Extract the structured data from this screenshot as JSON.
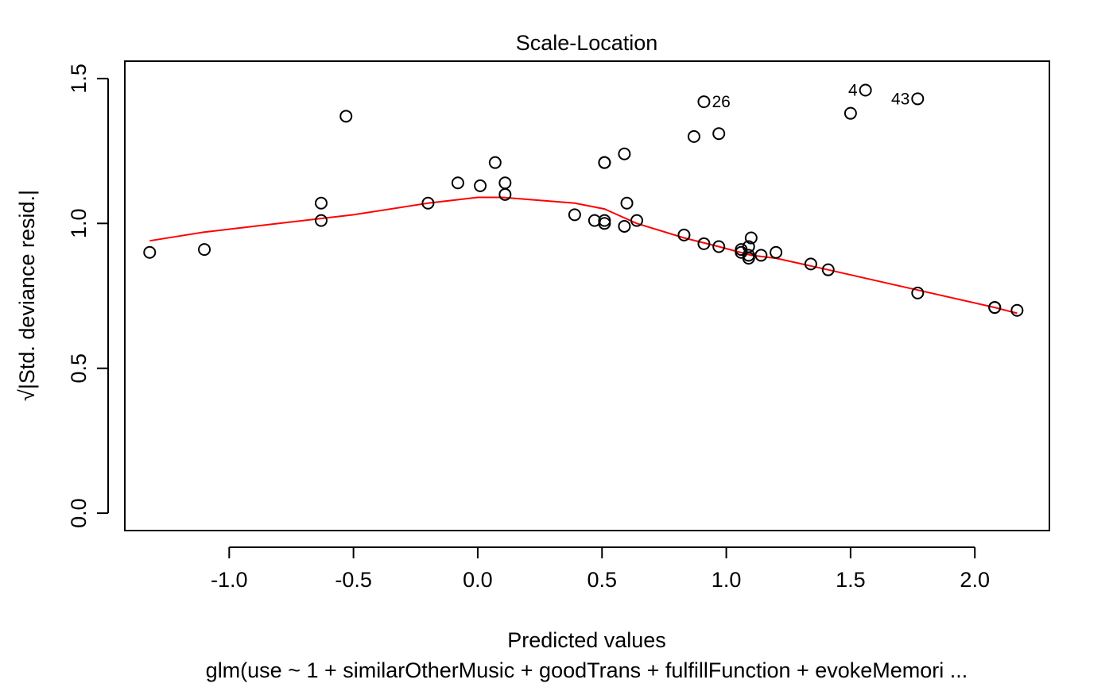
{
  "chart_data": {
    "type": "scatter",
    "title": "Scale-Location",
    "xlabel": "Predicted values",
    "ylabel": "√|Std. deviance resid.|",
    "subtitle": "glm(use ~ 1 + similarOtherMusic + goodTrans + fulfillFunction + evokeMemori ...",
    "xlim": [
      -1.42,
      2.3
    ],
    "ylim": [
      -0.06,
      1.56
    ],
    "x_ticks": [
      {
        "value": -1.0,
        "label": "-1.0"
      },
      {
        "value": -0.5,
        "label": "-0.5"
      },
      {
        "value": 0.0,
        "label": "0.0"
      },
      {
        "value": 0.5,
        "label": "0.5"
      },
      {
        "value": 1.0,
        "label": "1.0"
      },
      {
        "value": 1.5,
        "label": "1.5"
      },
      {
        "value": 2.0,
        "label": "2.0"
      }
    ],
    "y_ticks": [
      {
        "value": 0.0,
        "label": "0.0"
      },
      {
        "value": 0.5,
        "label": "0.5"
      },
      {
        "value": 1.0,
        "label": "1.0"
      },
      {
        "value": 1.5,
        "label": "1.5"
      }
    ],
    "grid": false,
    "point_color": "#000000",
    "smooth_color": "#ff0000",
    "points": [
      {
        "x": -1.32,
        "y": 0.9
      },
      {
        "x": -1.1,
        "y": 0.91
      },
      {
        "x": -0.63,
        "y": 1.07
      },
      {
        "x": -0.63,
        "y": 1.01
      },
      {
        "x": -0.53,
        "y": 1.37
      },
      {
        "x": -0.2,
        "y": 1.07
      },
      {
        "x": -0.08,
        "y": 1.14
      },
      {
        "x": 0.01,
        "y": 1.13
      },
      {
        "x": 0.07,
        "y": 1.21
      },
      {
        "x": 0.11,
        "y": 1.14
      },
      {
        "x": 0.11,
        "y": 1.1
      },
      {
        "x": 0.39,
        "y": 1.03
      },
      {
        "x": 0.47,
        "y": 1.01
      },
      {
        "x": 0.51,
        "y": 1.21
      },
      {
        "x": 0.51,
        "y": 1.21
      },
      {
        "x": 0.51,
        "y": 1.01
      },
      {
        "x": 0.51,
        "y": 1.0
      },
      {
        "x": 0.59,
        "y": 1.24
      },
      {
        "x": 0.6,
        "y": 1.07
      },
      {
        "x": 0.59,
        "y": 0.99
      },
      {
        "x": 0.64,
        "y": 1.01
      },
      {
        "x": 0.83,
        "y": 0.96
      },
      {
        "x": 0.87,
        "y": 1.3
      },
      {
        "x": 0.91,
        "y": 1.42
      },
      {
        "x": 0.91,
        "y": 0.93
      },
      {
        "x": 0.97,
        "y": 1.31
      },
      {
        "x": 0.97,
        "y": 0.92
      },
      {
        "x": 1.06,
        "y": 0.91
      },
      {
        "x": 1.06,
        "y": 0.9
      },
      {
        "x": 1.09,
        "y": 0.92
      },
      {
        "x": 1.1,
        "y": 0.95
      },
      {
        "x": 1.09,
        "y": 0.89
      },
      {
        "x": 1.09,
        "y": 0.88
      },
      {
        "x": 1.14,
        "y": 0.89
      },
      {
        "x": 1.2,
        "y": 0.9
      },
      {
        "x": 1.34,
        "y": 0.86
      },
      {
        "x": 1.41,
        "y": 0.84
      },
      {
        "x": 1.5,
        "y": 1.38
      },
      {
        "x": 1.56,
        "y": 1.46
      },
      {
        "x": 1.77,
        "y": 1.43
      },
      {
        "x": 1.77,
        "y": 0.76
      },
      {
        "x": 2.08,
        "y": 0.71
      },
      {
        "x": 2.08,
        "y": 0.71
      },
      {
        "x": 2.17,
        "y": 0.7
      }
    ],
    "point_labels": [
      {
        "text": "26",
        "x": 0.91,
        "y": 1.42,
        "side": "right"
      },
      {
        "text": "4",
        "x": 1.56,
        "y": 1.46,
        "side": "left"
      },
      {
        "text": "43",
        "x": 1.77,
        "y": 1.43,
        "side": "left"
      }
    ],
    "smooth_line": [
      {
        "x": -1.32,
        "y": 0.94
      },
      {
        "x": -1.1,
        "y": 0.97
      },
      {
        "x": -0.8,
        "y": 1.0
      },
      {
        "x": -0.5,
        "y": 1.03
      },
      {
        "x": -0.2,
        "y": 1.07
      },
      {
        "x": 0.0,
        "y": 1.09
      },
      {
        "x": 0.1,
        "y": 1.09
      },
      {
        "x": 0.39,
        "y": 1.07
      },
      {
        "x": 0.51,
        "y": 1.05
      },
      {
        "x": 0.64,
        "y": 1.0
      },
      {
        "x": 0.83,
        "y": 0.95
      },
      {
        "x": 0.97,
        "y": 0.92
      },
      {
        "x": 1.1,
        "y": 0.89
      },
      {
        "x": 1.2,
        "y": 0.88
      },
      {
        "x": 1.41,
        "y": 0.84
      },
      {
        "x": 1.77,
        "y": 0.77
      },
      {
        "x": 2.08,
        "y": 0.71
      },
      {
        "x": 2.17,
        "y": 0.69
      }
    ]
  }
}
